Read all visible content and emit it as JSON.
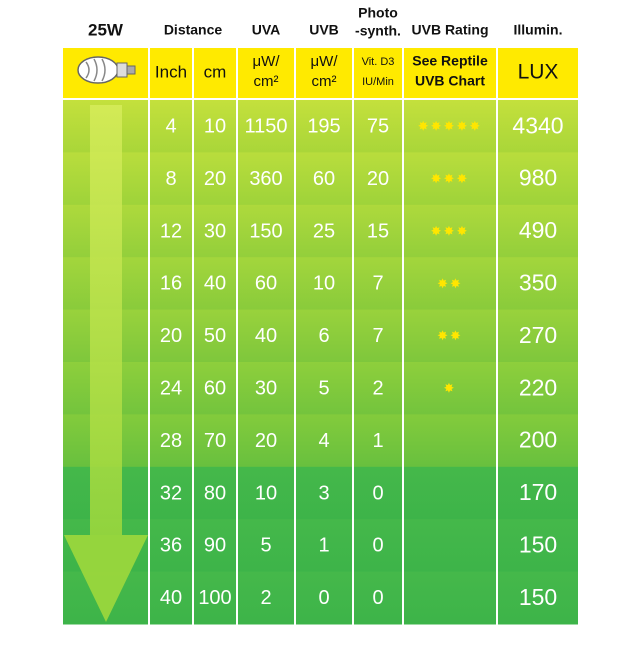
{
  "header": {
    "columns": [
      [
        "25W"
      ],
      [
        "Distance"
      ],
      [
        "UVA"
      ],
      [
        "UVB"
      ],
      [
        "Photo",
        "-synth."
      ],
      [
        "UVB Rating"
      ],
      [
        "Illumin."
      ]
    ],
    "units": [
      [
        "Inch"
      ],
      [
        "cm"
      ],
      [
        "μW/",
        "cm²"
      ],
      [
        "μW/",
        "cm²"
      ],
      [
        "Vit. D3",
        "IU/Min"
      ],
      [
        "See Reptile",
        "UVB Chart"
      ],
      [
        "LUX"
      ]
    ]
  },
  "table": {
    "rows": [
      [
        4,
        10,
        1150,
        195,
        75,
        "✸✸✸✸✸",
        4340
      ],
      [
        8,
        20,
        360,
        60,
        20,
        "✸✸✸",
        980
      ],
      [
        12,
        30,
        150,
        25,
        15,
        "✸✸✸",
        490
      ],
      [
        16,
        40,
        60,
        10,
        7,
        "✸✸",
        350
      ],
      [
        20,
        50,
        40,
        6,
        7,
        "✸✸",
        270
      ],
      [
        24,
        60,
        30,
        5,
        2,
        "✸",
        220
      ],
      [
        28,
        70,
        20,
        4,
        1,
        null,
        200
      ],
      [
        32,
        80,
        10,
        3,
        0,
        null,
        170
      ],
      [
        36,
        90,
        5,
        1,
        0,
        null,
        150
      ],
      [
        40,
        100,
        2,
        0,
        0,
        null,
        150
      ]
    ]
  }
}
